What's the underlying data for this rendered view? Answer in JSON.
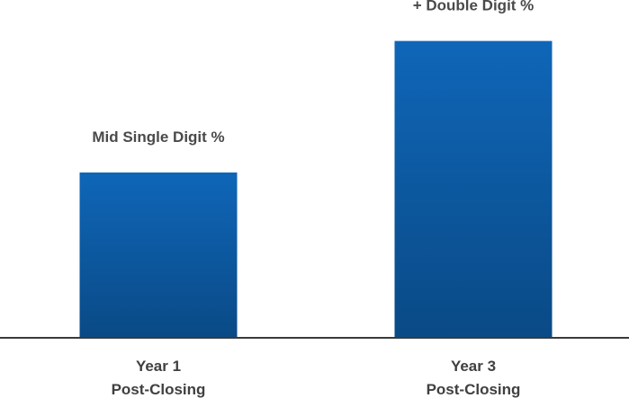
{
  "chart_data": {
    "type": "bar",
    "categories": [
      [
        "Year 1",
        "Post-Closing"
      ],
      [
        "Year 3",
        "Post-Closing"
      ]
    ],
    "values": [
      0.5,
      0.9
    ],
    "value_scale_note": "relative bar heights (fraction of plot height)",
    "data_labels": [
      "Mid Single Digit %",
      "+ Double Digit %"
    ],
    "title": "",
    "xlabel": "",
    "ylabel": "",
    "grid": false,
    "legend": "none",
    "colors": {
      "bar_top": "#0f66b8",
      "bar_bottom": "#0a4a86",
      "axis": "#3a3a3a",
      "label_text": "#404040"
    }
  }
}
